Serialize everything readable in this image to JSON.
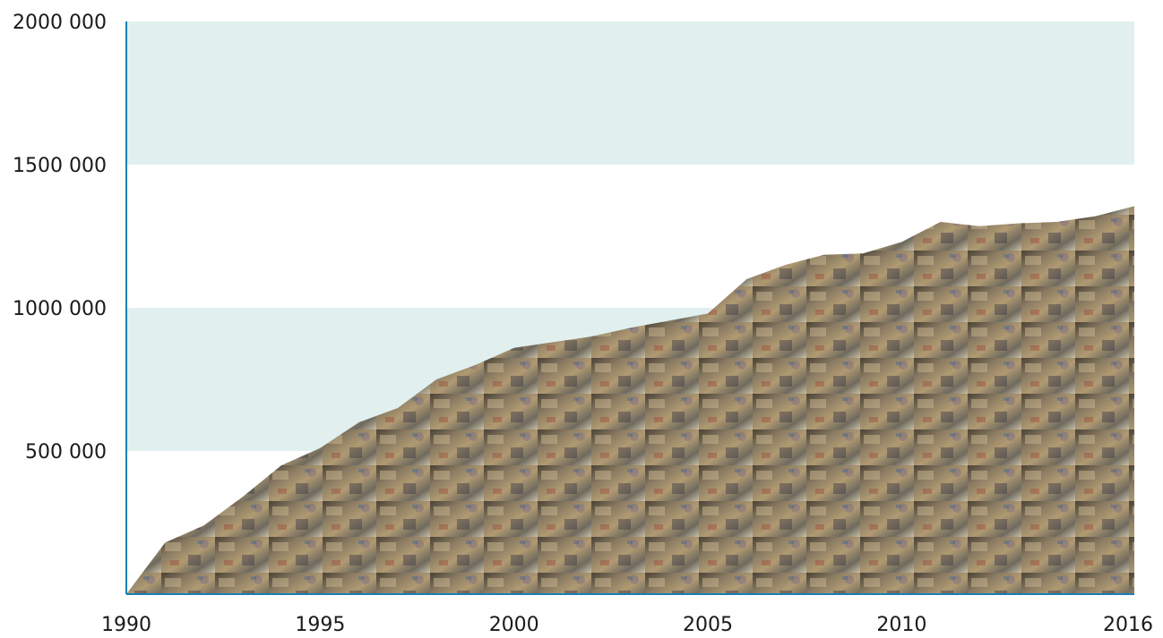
{
  "chart_data": {
    "type": "area",
    "title": "",
    "xlabel": "",
    "ylabel": "",
    "x": [
      1990,
      1991,
      1992,
      1993,
      1994,
      1995,
      1996,
      1997,
      1998,
      1999,
      2000,
      2001,
      2002,
      2003,
      2004,
      2005,
      2006,
      2007,
      2008,
      2009,
      2010,
      2011,
      2012,
      2013,
      2014,
      2015,
      2016
    ],
    "values": [
      0,
      180000,
      240000,
      340000,
      450000,
      510000,
      600000,
      650000,
      750000,
      800000,
      860000,
      880000,
      900000,
      930000,
      955000,
      980000,
      1100000,
      1150000,
      1185000,
      1190000,
      1230000,
      1300000,
      1285000,
      1295000,
      1300000,
      1320000,
      1355000
    ],
    "xticks": [
      "1990",
      "1995",
      "2000",
      "2005",
      "2010",
      "2016"
    ],
    "xtick_values": [
      1990,
      1995,
      2000,
      2005,
      2010,
      2016
    ],
    "yticks": [
      "500 000",
      "1000 000",
      "1500 000",
      "2000 000"
    ],
    "ytick_values": [
      500000,
      1000000,
      1500000,
      2000000
    ],
    "xlim": [
      1990,
      2016
    ],
    "ylim": [
      0,
      2000000
    ],
    "band_color": "#e1f0ef",
    "axis_color": "#1a7fb8",
    "fill_colors": [
      "#4a4236",
      "#8a7b62",
      "#b09a72",
      "#6f6a5e",
      "#c8bfa8"
    ],
    "grid": false,
    "legend": "none"
  }
}
